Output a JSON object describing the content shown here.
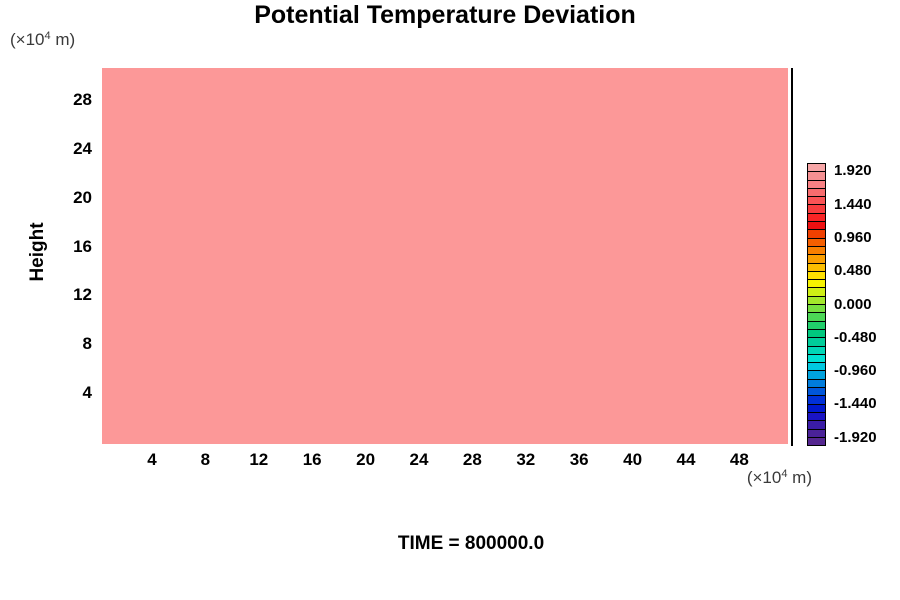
{
  "title": "Potential Temperature Deviation",
  "unit_label": {
    "prefix": "(×10",
    "sup": "4",
    "suffix": " m)"
  },
  "time_label": "TIME = 800000.0",
  "chart_data": {
    "type": "heatmap",
    "title": "Potential Temperature Deviation",
    "ylabel": "Height",
    "x_unit": "(×10⁴ m)",
    "y_unit": "(×10⁴ m)",
    "x_ticks": [
      4,
      8,
      12,
      16,
      20,
      24,
      28,
      32,
      36,
      40,
      44,
      48
    ],
    "y_ticks": [
      4,
      8,
      12,
      16,
      20,
      24,
      28
    ],
    "xlim": [
      0,
      52
    ],
    "ylim": [
      0,
      30.5
    ],
    "grid": false,
    "field": {
      "uniform": true,
      "fill_color": "#FC9898"
    },
    "annotation": "TIME = 800000.0",
    "colorbar": {
      "position": "right",
      "contour_interval": 0.12,
      "tick_labels": [
        "1.920",
        "1.440",
        "0.960",
        "0.480",
        "0.000",
        "-0.480",
        "-0.960",
        "-1.440",
        "-1.920"
      ],
      "segment_colors": [
        "#F7A6A7",
        "#F59092",
        "#F98184",
        "#F76C6E",
        "#FA5355",
        "#F83C3E",
        "#F92425",
        "#EE1011",
        "#F04000",
        "#F55F00",
        "#F87F00",
        "#FA9E00",
        "#FCBE00",
        "#FFE000",
        "#F6F200",
        "#CFEF15",
        "#A3E72B",
        "#77DF41",
        "#4CD756",
        "#21CF6B",
        "#00C87E",
        "#00CD9A",
        "#00D6B6",
        "#00E0D2",
        "#00C8E0",
        "#00A2DE",
        "#007CDC",
        "#0056DA",
        "#0030D8",
        "#0018CE",
        "#1A14C4",
        "#3A1CA6",
        "#4A2298",
        "#552790"
      ]
    }
  }
}
